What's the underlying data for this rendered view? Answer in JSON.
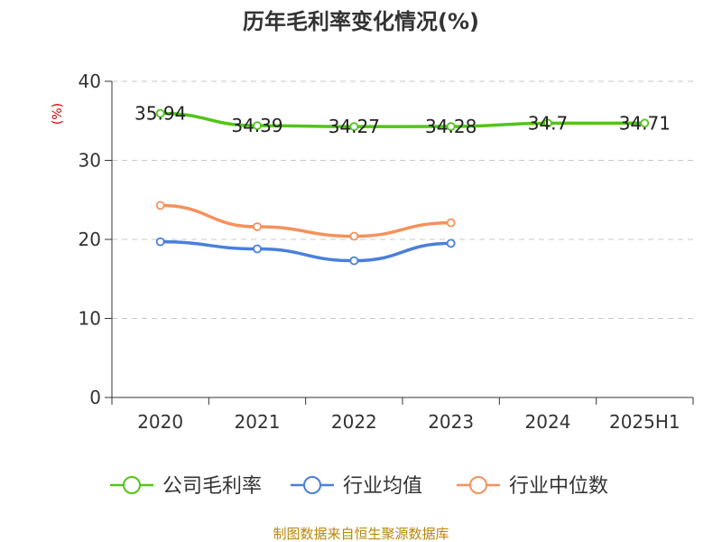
{
  "chart_data": {
    "type": "line",
    "title": "历年毛利率变化情况(%)",
    "ylabel": "(%)",
    "xlabel": "",
    "categories": [
      "2020",
      "2021",
      "2022",
      "2023",
      "2024",
      "2025H1"
    ],
    "ylim": [
      0,
      40
    ],
    "yticks": [
      "0",
      "10",
      "20",
      "30",
      "40"
    ],
    "grid": true,
    "legend_position": "bottom",
    "series": [
      {
        "name": "公司毛利率",
        "color": "#52c41a",
        "values": [
          35.94,
          34.39,
          34.27,
          34.28,
          34.7,
          34.71
        ],
        "labels": [
          "35.94",
          "34.39",
          "34.27",
          "34.28",
          "34.7",
          "34.71"
        ]
      },
      {
        "name": "行业均值",
        "color": "#4a7fdb",
        "values": [
          19.7,
          18.8,
          17.3,
          19.5,
          null,
          null
        ]
      },
      {
        "name": "行业中位数",
        "color": "#f5915c",
        "values": [
          24.3,
          21.6,
          20.4,
          22.1,
          null,
          null
        ]
      }
    ]
  },
  "source_text": "制图数据来自恒生聚源数据库"
}
